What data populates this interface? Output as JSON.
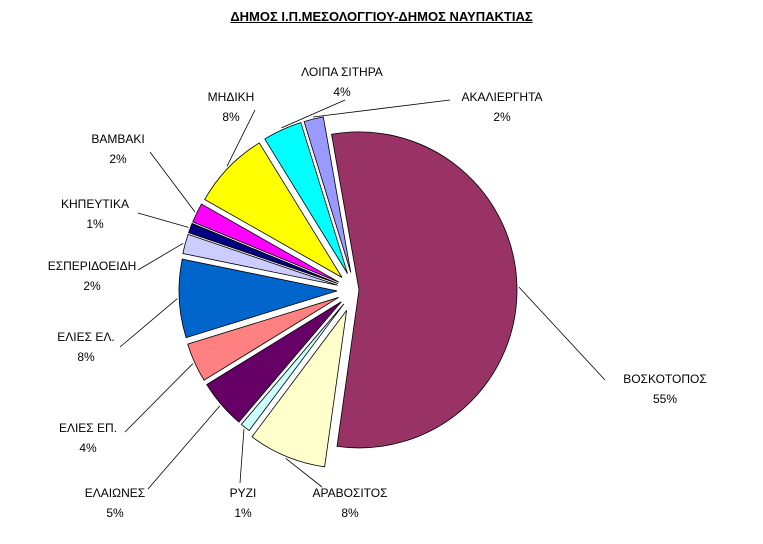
{
  "chart_data": {
    "type": "pie",
    "title": "ΔΗΜΟΣ Ι.Π.ΜΕΣΟΛΟΓΓΙΟΥ-ΔΗΜΟΣ ΝΑΥΠΑΚΤΙΑΣ",
    "exploded": true,
    "slices": [
      {
        "name": "ΒΟΣΚΟΤΟΠΟΣ",
        "pct_label": "55%",
        "value": 55,
        "color": "#993366"
      },
      {
        "name": "ΑΡΑΒΟΣΙΤΟΣ",
        "pct_label": "8%",
        "value": 8,
        "color": "#FFFFCC"
      },
      {
        "name": "ΡΥΖΙ",
        "pct_label": "1%",
        "value": 1,
        "color": "#CCFFFF"
      },
      {
        "name": "ΕΛΑΙΩΝΕΣ",
        "pct_label": "5%",
        "value": 5,
        "color": "#660066"
      },
      {
        "name": "ΕΛΙΕΣ ΕΠ.",
        "pct_label": "4%",
        "value": 4,
        "color": "#FF8080"
      },
      {
        "name": "ΕΛΙΕΣ ΕΛ.",
        "pct_label": "8%",
        "value": 8,
        "color": "#0066CC"
      },
      {
        "name": "ΕΣΠΕΡΙΔΟΕΙΔΗ",
        "pct_label": "2%",
        "value": 2,
        "color": "#CCCCFF"
      },
      {
        "name": "ΚΗΠΕΥΤΙΚΑ",
        "pct_label": "1%",
        "value": 1,
        "color": "#000080"
      },
      {
        "name": "ΒΑΜΒΑΚΙ",
        "pct_label": "2%",
        "value": 2,
        "color": "#FF00FF"
      },
      {
        "name": "ΜΗΔΙΚΗ",
        "pct_label": "8%",
        "value": 8,
        "color": "#FFFF00"
      },
      {
        "name": "ΛΟΙΠΑ ΣΙΤΗΡΑ",
        "pct_label": "4%",
        "value": 4,
        "color": "#00FFFF"
      },
      {
        "name": "ΑΚΑΛΙΕΡΓΗΤΑ",
        "pct_label": "2%",
        "value": 2,
        "color": "#9999FF"
      }
    ]
  }
}
